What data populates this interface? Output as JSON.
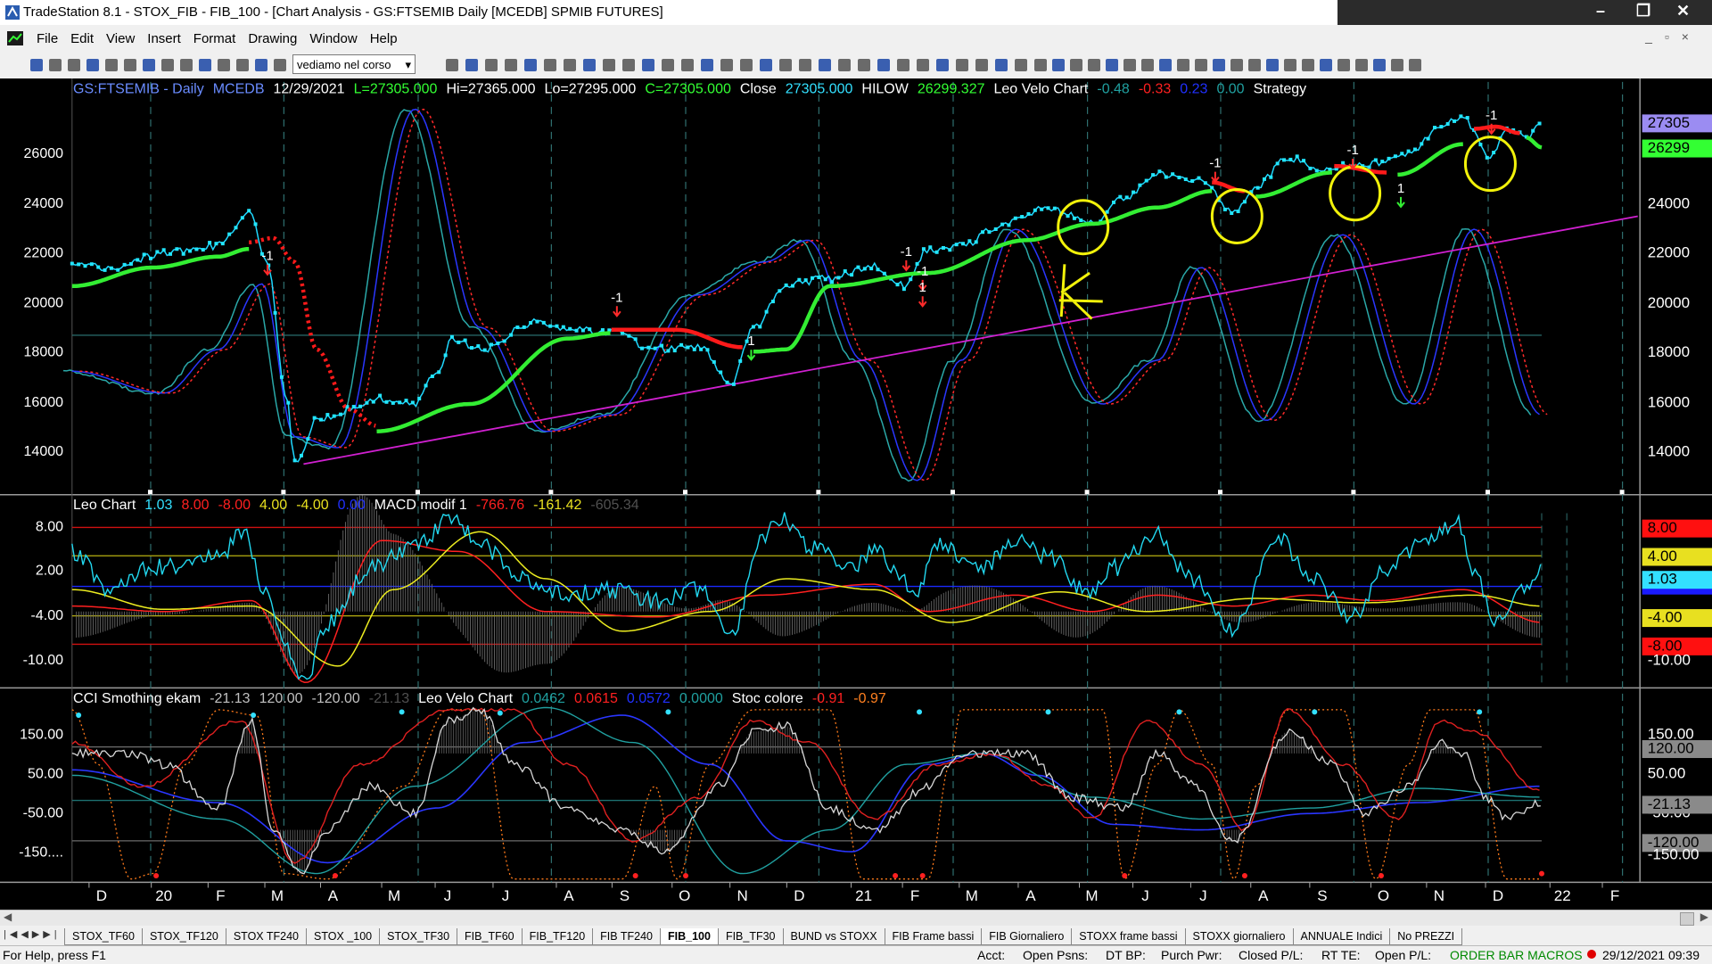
{
  "window": {
    "title": "TradeStation 8.1 - STOX_FIB - FIB_100 - [Chart Analysis - GS:FTSEMIB  Daily  [MCEDB] SPMIB FUTURES]"
  },
  "menu": [
    "File",
    "Edit",
    "View",
    "Insert",
    "Format",
    "Drawing",
    "Window",
    "Help"
  ],
  "toolbar": {
    "dropdown": "vediamo nel corso"
  },
  "price_panel": {
    "header": [
      {
        "text": "GS:FTSEMIB - Daily",
        "color": "#6a8cff"
      },
      {
        "text": "MCEDB",
        "color": "#6a8cff"
      },
      {
        "text": "12/29/2021",
        "color": "#ffffff"
      },
      {
        "text": "L=27305.000",
        "color": "#33ff33"
      },
      {
        "text": "Hi=27365.000",
        "color": "#ffffff"
      },
      {
        "text": "Lo=27295.000",
        "color": "#ffffff"
      },
      {
        "text": "C=27305.000",
        "color": "#33ff33"
      },
      {
        "text": "Close",
        "color": "#ffffff"
      },
      {
        "text": "27305.000",
        "color": "#33e0ff"
      },
      {
        "text": "HILOW",
        "color": "#ffffff"
      },
      {
        "text": "26299.327",
        "color": "#33ff33"
      },
      {
        "text": "Leo Velo Chart",
        "color": "#ffffff"
      },
      {
        "text": "-0.48",
        "color": "#20a0a0"
      },
      {
        "text": "-0.33",
        "color": "#ff2020"
      },
      {
        "text": "0.23",
        "color": "#2030ff"
      },
      {
        "text": "0.00",
        "color": "#20a0a0"
      },
      {
        "text": "Strategy",
        "color": "#ffffff"
      }
    ],
    "left_labels": [
      "26000",
      "24000",
      "22000",
      "20000",
      "18000",
      "16000",
      "14000"
    ],
    "right_labels": [
      {
        "text": "27305",
        "bg": "#9b8cf2"
      },
      {
        "text": "26299",
        "bg": "#33ff33"
      },
      {
        "text": "24000"
      },
      {
        "text": "22000"
      },
      {
        "text": "20000"
      },
      {
        "text": "18000"
      },
      {
        "text": "16000"
      },
      {
        "text": "14000"
      }
    ],
    "markers": [
      "-1",
      "-1",
      "-1",
      "1",
      "-1",
      "1",
      "-1",
      "-1",
      "1",
      "-1"
    ]
  },
  "macd_panel": {
    "header": [
      {
        "text": "Leo Chart",
        "color": "#ffffff"
      },
      {
        "text": "1.03",
        "color": "#33e0ff"
      },
      {
        "text": "8.00",
        "color": "#ff2020"
      },
      {
        "text": "-8.00",
        "color": "#ff2020"
      },
      {
        "text": "4.00",
        "color": "#e8e020"
      },
      {
        "text": "-4.00",
        "color": "#e8e020"
      },
      {
        "text": "0.00",
        "color": "#2030ff"
      },
      {
        "text": "MACD modif 1",
        "color": "#ffffff"
      },
      {
        "text": "-766.76",
        "color": "#ff2020"
      },
      {
        "text": "-161.42",
        "color": "#e8e020"
      },
      {
        "text": "-605.34",
        "color": "#505050"
      }
    ],
    "left_labels": [
      "8.00",
      "2.00",
      "-4.00",
      "-10.00"
    ],
    "right_labels": [
      {
        "text": "8.00",
        "bg": "#ff1010"
      },
      {
        "text": "4.00",
        "bg": "#e8e020"
      },
      {
        "text": "1.03",
        "bg": "#33e0ff"
      },
      {
        "text": "-4.00",
        "bg": "#e8e020"
      },
      {
        "text": "-8.00",
        "bg": "#ff1010"
      },
      {
        "text": "-10.00"
      }
    ]
  },
  "cci_panel": {
    "header": [
      {
        "text": "CCI Smothing ekam",
        "color": "#ffffff"
      },
      {
        "text": "-21.13",
        "color": "#c0c0c0"
      },
      {
        "text": "120.00",
        "color": "#c0c0c0"
      },
      {
        "text": "-120.00",
        "color": "#c0c0c0"
      },
      {
        "text": "-21.13",
        "color": "#505050"
      },
      {
        "text": "Leo Velo Chart",
        "color": "#ffffff"
      },
      {
        "text": "0.0462",
        "color": "#20a0a0"
      },
      {
        "text": "0.0615",
        "color": "#ff2020"
      },
      {
        "text": "0.0572",
        "color": "#2030ff"
      },
      {
        "text": "0.0000",
        "color": "#20a0a0"
      },
      {
        "text": "Stoc colore",
        "color": "#ffffff"
      },
      {
        "text": "-0.91",
        "color": "#ff2020"
      },
      {
        "text": "-0.97",
        "color": "#ff8020"
      }
    ],
    "left_labels": [
      "150.00",
      "50.00",
      "-50.00",
      "-150...."
    ],
    "right_labels": [
      {
        "text": "150.00"
      },
      {
        "text": "120.00",
        "bg": "#8a8a8a"
      },
      {
        "text": "50.00"
      },
      {
        "text": "-50.00"
      },
      {
        "text": "-21.13",
        "bg": "#8a8a8a"
      },
      {
        "text": "-120.00",
        "bg": "#8a8a8a"
      },
      {
        "text": "-150.00"
      }
    ]
  },
  "date_axis": [
    "D",
    "20",
    "F",
    "M",
    "A",
    "M",
    "J",
    "J",
    "A",
    "S",
    "O",
    "N",
    "D",
    "21",
    "F",
    "M",
    "A",
    "M",
    "J",
    "J",
    "A",
    "S",
    "O",
    "N",
    "D",
    "22",
    "F"
  ],
  "tabs": [
    "STOX_TF60",
    "STOX_TF120",
    "STOX TF240",
    "STOX _100",
    "STOX_TF30",
    "FIB_TF60",
    "FIB_TF120",
    "FIB TF240",
    "FIB_100",
    "FIB_TF30",
    "BUND vs STOXX",
    "FIB Frame bassi",
    "FIB Giornaliero",
    "STOXX frame bassi",
    "STOXX giornaliero",
    "ANNUALE Indici",
    "No PREZZI"
  ],
  "active_tab": "FIB_100",
  "status": {
    "help": "For Help, press F1",
    "fields": [
      "Acct:",
      "Open Psns:",
      "DT BP:",
      "Purch Pwr:",
      "Closed P/L:",
      "RT TE:",
      "Open P/L:"
    ],
    "macros": "ORDER BAR MACROS",
    "datetime": "29/12/2021 09:39"
  }
}
